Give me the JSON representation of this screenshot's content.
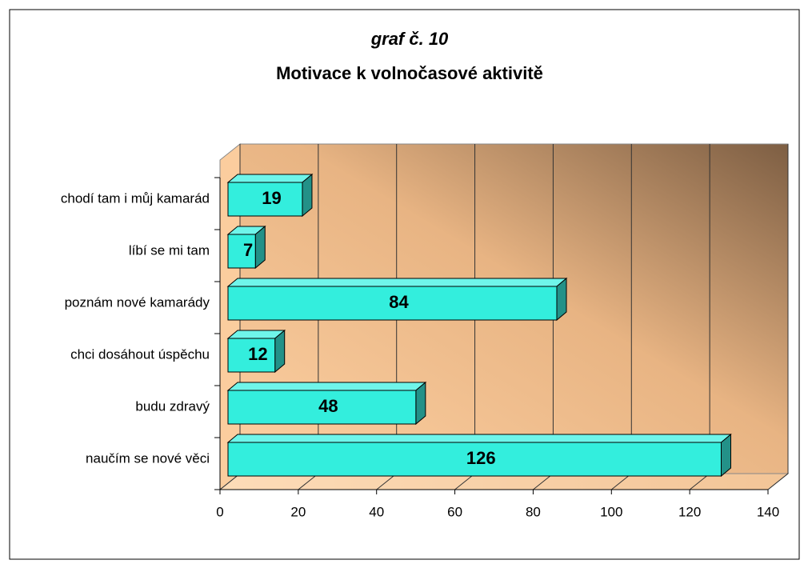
{
  "chart_data": {
    "type": "bar3d",
    "title": "graf č. 10",
    "subtitle": "Motivace k volnočasové aktivitě",
    "categories": [
      "chodí tam i můj kamarád",
      "líbí se mi tam",
      "poznám nové kamarády",
      "chci dosáhout úspěchu",
      "budu zdravý",
      "naučím se nové věci"
    ],
    "values": [
      19,
      7,
      84,
      12,
      48,
      126
    ],
    "color": "#33eedd",
    "xlim": [
      0,
      140
    ],
    "xticks": [
      0,
      20,
      40,
      60,
      80,
      100,
      120,
      140
    ],
    "grid": true
  }
}
